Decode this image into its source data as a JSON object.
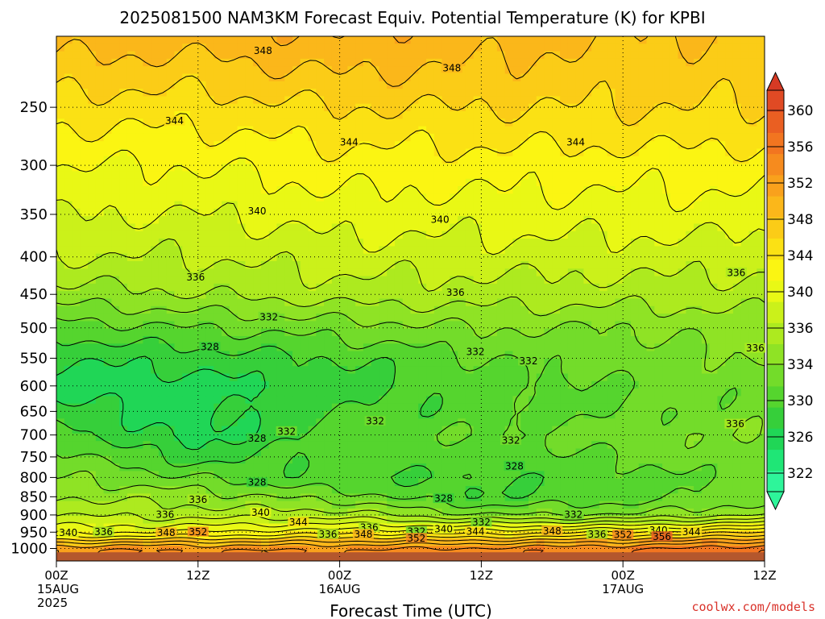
{
  "chart_data": {
    "type": "heatmap",
    "title": "2025081500 NAM3KM Forecast Equiv. Potential Temperature (K) for KPBI",
    "xlabel": "Forecast Time (UTC)",
    "ylabel": "",
    "credit": "coolwx.com/models",
    "y_axis": {
      "scale": "log",
      "inverted": true,
      "range": [
        200,
        1040
      ],
      "ticks": [
        250,
        300,
        350,
        400,
        450,
        500,
        550,
        600,
        650,
        700,
        750,
        800,
        850,
        900,
        950,
        1000
      ]
    },
    "x_axis": {
      "range_hours": [
        0,
        60
      ],
      "ticks": [
        {
          "hour": 0,
          "lines": [
            "00Z",
            "15AUG",
            "2025"
          ]
        },
        {
          "hour": 12,
          "lines": [
            "12Z"
          ]
        },
        {
          "hour": 24,
          "lines": [
            "00Z",
            "16AUG"
          ]
        },
        {
          "hour": 36,
          "lines": [
            "12Z"
          ]
        },
        {
          "hour": 48,
          "lines": [
            "00Z",
            "17AUG"
          ]
        },
        {
          "hour": 60,
          "lines": [
            "12Z"
          ]
        }
      ]
    },
    "grid": true,
    "colorbar": {
      "position": "right",
      "ticks": [
        322,
        326,
        330,
        334,
        336,
        340,
        344,
        348,
        352,
        356,
        360
      ],
      "levels": [
        322,
        324,
        326,
        328,
        330,
        332,
        334,
        336,
        338,
        340,
        342,
        344,
        346,
        348,
        350,
        352,
        354,
        356,
        358,
        360
      ],
      "colors": [
        "#2ef59a",
        "#1fe676",
        "#20d656",
        "#36cf3a",
        "#55d52e",
        "#73dc2a",
        "#8fe325",
        "#adea1f",
        "#cbf11a",
        "#e9f815",
        "#fbf512",
        "#fbe114",
        "#fbcc17",
        "#fbb71a",
        "#f9a11c",
        "#f68b1e",
        "#f27520",
        "#ea5f22",
        "#e04a24",
        "#d63a24"
      ]
    },
    "contour_interval": 2,
    "profiles_columns_hours": [
      0,
      12,
      24,
      36,
      48,
      60
    ],
    "theta_e_profiles": {
      "pressures": [
        200,
        250,
        300,
        350,
        400,
        450,
        500,
        550,
        600,
        650,
        700,
        750,
        800,
        850,
        900,
        950,
        1000
      ],
      "values": [
        [
          349,
          345,
          342,
          340,
          338,
          335,
          331,
          328,
          327,
          329,
          331,
          333,
          334,
          336,
          338,
          341,
          352
        ],
        [
          349,
          345,
          342,
          340,
          338,
          336,
          332,
          329,
          327,
          327,
          327,
          329,
          332,
          335,
          337,
          342,
          352
        ],
        [
          350,
          346,
          343,
          341,
          339,
          337,
          333,
          330,
          329,
          330,
          331,
          331,
          330,
          333,
          337,
          343,
          352
        ],
        [
          349,
          346,
          343,
          341,
          339,
          337,
          334,
          332,
          331,
          331,
          332,
          331,
          330,
          330,
          334,
          343,
          353
        ],
        [
          348,
          346,
          343,
          341,
          339,
          337,
          334,
          333,
          332,
          332,
          333,
          332,
          331,
          331,
          334,
          344,
          354
        ],
        [
          348,
          346,
          343,
          341,
          339,
          337,
          335,
          334,
          333,
          333,
          334,
          334,
          333,
          333,
          336,
          346,
          356
        ]
      ]
    },
    "contour_labels": [
      {
        "hour": 17.5,
        "p": 210,
        "text": "348"
      },
      {
        "hour": 33.5,
        "p": 222,
        "text": "348"
      },
      {
        "hour": 10,
        "p": 262,
        "text": "344"
      },
      {
        "hour": 24.8,
        "p": 280,
        "text": "344"
      },
      {
        "hour": 44,
        "p": 280,
        "text": "344"
      },
      {
        "hour": 17,
        "p": 348,
        "text": "340"
      },
      {
        "hour": 32.5,
        "p": 357,
        "text": "340"
      },
      {
        "hour": 11.8,
        "p": 428,
        "text": "336"
      },
      {
        "hour": 33.8,
        "p": 449,
        "text": "336"
      },
      {
        "hour": 57.6,
        "p": 422,
        "text": "336"
      },
      {
        "hour": 18,
        "p": 485,
        "text": "332"
      },
      {
        "hour": 13,
        "p": 533,
        "text": "328"
      },
      {
        "hour": 35.5,
        "p": 541,
        "text": "332"
      },
      {
        "hour": 40,
        "p": 557,
        "text": "332"
      },
      {
        "hour": 59.2,
        "p": 535,
        "text": "336"
      },
      {
        "hour": 27,
        "p": 673,
        "text": "332"
      },
      {
        "hour": 19.5,
        "p": 695,
        "text": "332"
      },
      {
        "hour": 17,
        "p": 710,
        "text": "328"
      },
      {
        "hour": 38.5,
        "p": 715,
        "text": "332"
      },
      {
        "hour": 57.5,
        "p": 679,
        "text": "336"
      },
      {
        "hour": 38.8,
        "p": 775,
        "text": "328"
      },
      {
        "hour": 17,
        "p": 816,
        "text": "328"
      },
      {
        "hour": 32.8,
        "p": 858,
        "text": "328"
      },
      {
        "hour": 12,
        "p": 861,
        "text": "336"
      },
      {
        "hour": 9.2,
        "p": 902,
        "text": "336"
      },
      {
        "hour": 17.3,
        "p": 897,
        "text": "340"
      },
      {
        "hour": 20.5,
        "p": 925,
        "text": "344"
      },
      {
        "hour": 26.5,
        "p": 940,
        "text": "336"
      },
      {
        "hour": 36,
        "p": 925,
        "text": "332"
      },
      {
        "hour": 43.8,
        "p": 903,
        "text": "332"
      },
      {
        "hour": 1,
        "p": 955,
        "text": "340"
      },
      {
        "hour": 4,
        "p": 953,
        "text": "336"
      },
      {
        "hour": 9.3,
        "p": 955,
        "text": "348"
      },
      {
        "hour": 12,
        "p": 953,
        "text": "352"
      },
      {
        "hour": 23,
        "p": 960,
        "text": "336"
      },
      {
        "hour": 26,
        "p": 960,
        "text": "348"
      },
      {
        "hour": 30.5,
        "p": 952,
        "text": "332"
      },
      {
        "hour": 32.8,
        "p": 945,
        "text": "340"
      },
      {
        "hour": 30.5,
        "p": 972,
        "text": "352"
      },
      {
        "hour": 35.5,
        "p": 952,
        "text": "344"
      },
      {
        "hour": 42,
        "p": 950,
        "text": "348"
      },
      {
        "hour": 45.8,
        "p": 960,
        "text": "336"
      },
      {
        "hour": 48,
        "p": 962,
        "text": "352"
      },
      {
        "hour": 51,
        "p": 948,
        "text": "340"
      },
      {
        "hour": 51.3,
        "p": 967,
        "text": "356"
      },
      {
        "hour": 53.8,
        "p": 953,
        "text": "344"
      }
    ]
  }
}
